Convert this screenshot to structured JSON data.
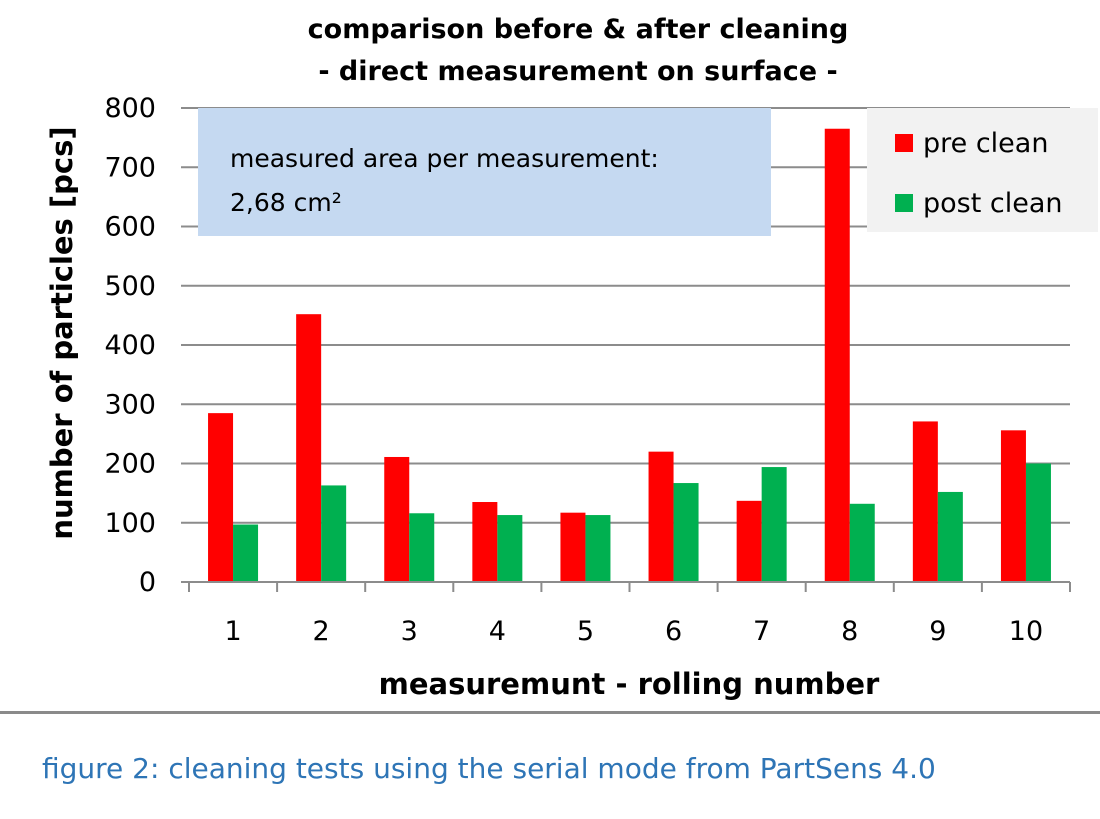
{
  "chart_data": {
    "type": "bar",
    "title_lines": [
      "comparison before & after cleaning",
      "- direct measurement on surface -"
    ],
    "xlabel": "measuremunt - rolling number",
    "ylabel": "number of particles  [pcs]",
    "categories": [
      "1",
      "2",
      "3",
      "4",
      "5",
      "6",
      "7",
      "8",
      "9",
      "10"
    ],
    "series": [
      {
        "name": "pre clean",
        "color": "#ff0000",
        "values": [
          285,
          452,
          211,
          135,
          117,
          220,
          137,
          765,
          271,
          256
        ]
      },
      {
        "name": "post clean",
        "color": "#00b050",
        "values": [
          97,
          163,
          116,
          113,
          113,
          167,
          194,
          132,
          152,
          200
        ]
      }
    ],
    "ylim": [
      0,
      800
    ],
    "yticks": [
      0,
      100,
      200,
      300,
      400,
      500,
      600,
      700,
      800
    ],
    "grid": true,
    "legend_position": "top-right",
    "annotation": {
      "line1": "measured area per measurement:",
      "line2": "2,68 cm²",
      "background": "#c5d9f1"
    }
  },
  "caption": "figure 2: cleaning tests using the serial mode from PartSens 4.0"
}
